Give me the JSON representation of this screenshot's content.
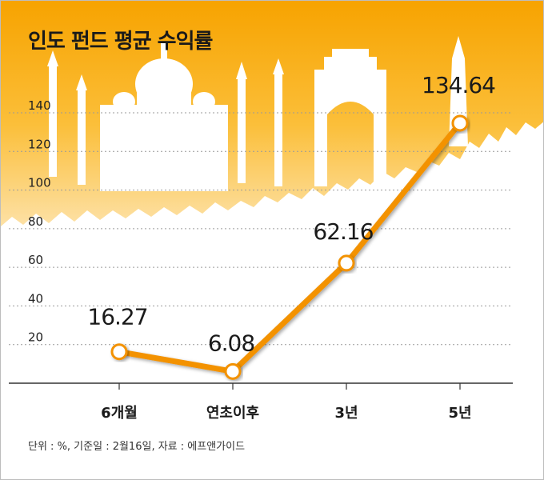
{
  "chart_data": {
    "type": "line",
    "title": "인도 펀드 평균 수익률",
    "categories": [
      "6개월",
      "연초이후",
      "3년",
      "5년"
    ],
    "values": [
      16.27,
      6.08,
      62.16,
      134.64
    ],
    "data_labels": [
      "16.27",
      "6.08",
      "62.16",
      "134.64"
    ],
    "y_ticks": [
      "20",
      "40",
      "60",
      "80",
      "100",
      "120",
      "140"
    ],
    "ylim": [
      0,
      140
    ],
    "grid": true,
    "footnote": "단위 : %, 기준일 : 2월16일, 자료 : 에프앤가이드",
    "colors": {
      "line": "#f39200",
      "marker_fill": "#ffffff",
      "background_top": "#f6a300",
      "background_fade": "#fde4b0",
      "silhouette": "#ffffff",
      "grid": "#9a9a9a",
      "axis": "#333333"
    }
  }
}
